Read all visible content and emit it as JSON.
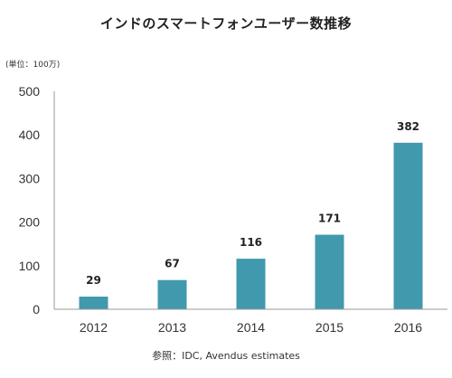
{
  "title": "インドのスマートフォンユーザー数推移",
  "unit_label": "(単位：100万)",
  "source": "参照：IDC, Avendus estimates",
  "colors": {
    "bar": "#4199ad",
    "axis": "#9a9a9a"
  },
  "chart_data": {
    "type": "bar",
    "categories": [
      "2012",
      "2013",
      "2014",
      "2015",
      "2016"
    ],
    "values": [
      29,
      67,
      116,
      171,
      382
    ],
    "data_labels": [
      "29",
      "67",
      "116",
      "171",
      "382"
    ],
    "ylim": [
      0,
      500
    ],
    "yticks": [
      "0",
      "100",
      "200",
      "300",
      "400",
      "500"
    ],
    "grid": false,
    "legend": "none",
    "title": "インドのスマートフォンユーザー数推移",
    "xlabel": "",
    "ylabel": "(単位：100万)"
  }
}
